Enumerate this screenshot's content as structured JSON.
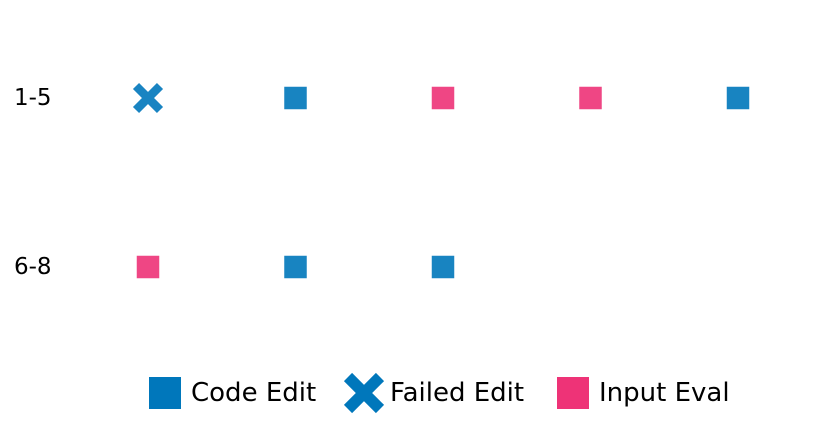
{
  "chart_data": {
    "type": "scatter",
    "title": "",
    "rows": [
      {
        "label": "1-5",
        "steps": [
          "Failed Edit",
          "Code Edit",
          "Input Eval",
          "Input Eval",
          "Code Edit"
        ]
      },
      {
        "label": "6-8",
        "steps": [
          "Input Eval",
          "Code Edit",
          "Code Edit"
        ]
      }
    ],
    "legend": {
      "placement": "bottom-center",
      "entries": [
        {
          "name": "Code Edit",
          "marker": "square",
          "color": "#0077bb"
        },
        {
          "name": "Failed Edit",
          "marker": "x",
          "color": "#0077bb"
        },
        {
          "name": "Input Eval",
          "marker": "square",
          "color": "#ee3377"
        }
      ]
    },
    "grid": false
  }
}
